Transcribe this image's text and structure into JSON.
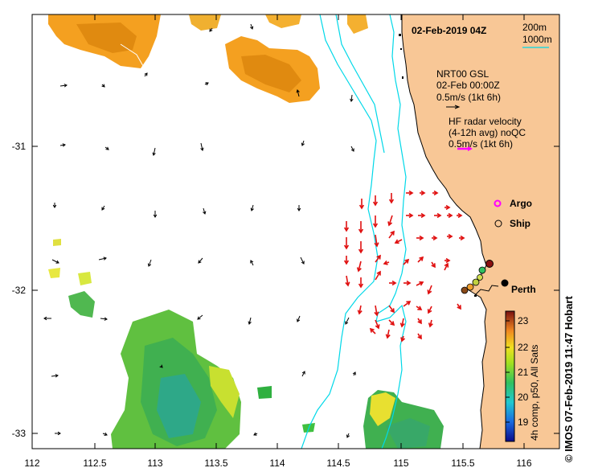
{
  "map": {
    "title": "02-Feb-2019 04Z",
    "contour_labels": [
      "200m",
      "1000m"
    ],
    "x_ticks": [
      "112",
      "112.5",
      "113",
      "113.5",
      "114",
      "114.5",
      "115",
      "115.5",
      "116"
    ],
    "y_ticks": [
      "-31",
      "-32",
      "-33"
    ],
    "place_label": "Perth",
    "credit": "© IMOS 07-Feb-2019 11:47 Hobart"
  },
  "legend": {
    "model_lines": [
      "NRT00 GSL",
      "02-Feb 00:00Z",
      "0.5m/s (1kt 6h)"
    ],
    "radar_lines": [
      "HF radar velocity",
      "(4-12h avg) noQC",
      "0.5m/s (1kt 6h)"
    ],
    "argo_label": "Argo",
    "ship_label": "Ship"
  },
  "colorbar": {
    "ticks": [
      "23",
      "22",
      "21",
      "20",
      "19"
    ],
    "label": "4h comp, p50, All Sats",
    "range": [
      18.5,
      23.3
    ]
  },
  "colors": {
    "land": "#f8c796",
    "radar_arrow": "#e01010",
    "model_arrow": "#000000",
    "isobath": "#00d8e8",
    "argo": "#ff00ff"
  }
}
